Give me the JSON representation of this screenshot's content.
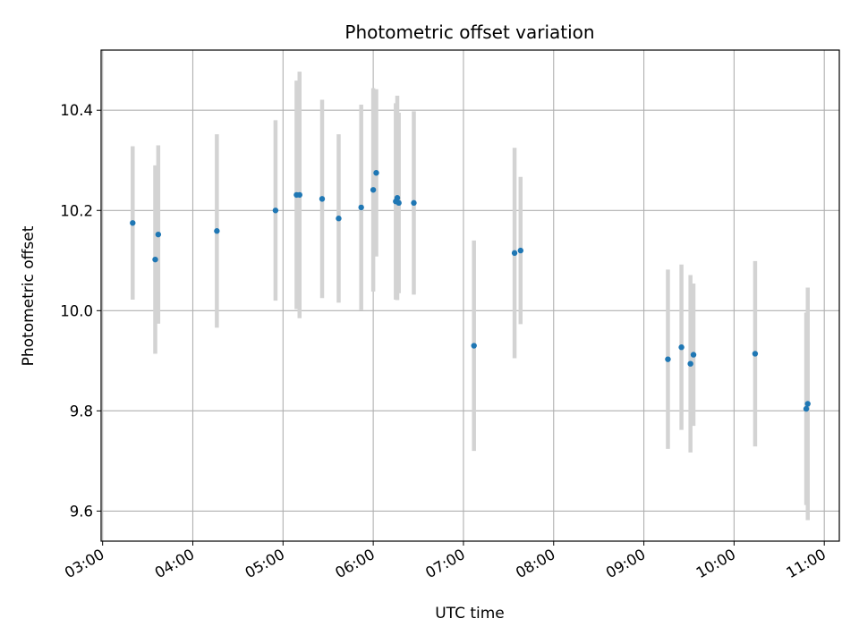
{
  "chart_data": {
    "type": "scatter",
    "title": "Photometric offset variation",
    "xlabel": "UTC time",
    "ylabel": "Photometric offset",
    "x_tick_labels": [
      "03:00",
      "04:00",
      "05:00",
      "06:00",
      "07:00",
      "08:00",
      "09:00",
      "10:00",
      "11:00"
    ],
    "y_tick_labels": [
      "9.6",
      "9.8",
      "10.0",
      "10.2",
      "10.4"
    ],
    "x_ticks_hours": [
      3,
      4,
      5,
      6,
      7,
      8,
      9,
      10,
      11
    ],
    "y_ticks": [
      9.6,
      9.8,
      10.0,
      10.2,
      10.4
    ],
    "xlim": [
      "02:59",
      "11:10"
    ],
    "ylim": [
      9.54,
      10.52
    ],
    "grid": true,
    "colors": {
      "points": "#1f77b4",
      "errorbars": "#d3d3d3",
      "grid": "#b0b0b0"
    },
    "points": [
      {
        "x": "03:20",
        "y": 10.175,
        "yerr": 0.153
      },
      {
        "x": "03:35",
        "y": 10.102,
        "yerr": 0.188
      },
      {
        "x": "03:37",
        "y": 10.152,
        "yerr": 0.178
      },
      {
        "x": "04:16",
        "y": 10.159,
        "yerr": 0.193
      },
      {
        "x": "04:55",
        "y": 10.2,
        "yerr": 0.18
      },
      {
        "x": "05:09",
        "y": 10.231,
        "yerr": 0.228
      },
      {
        "x": "05:11",
        "y": 10.231,
        "yerr": 0.246
      },
      {
        "x": "05:26",
        "y": 10.223,
        "yerr": 0.198
      },
      {
        "x": "05:37",
        "y": 10.184,
        "yerr": 0.168
      },
      {
        "x": "05:52",
        "y": 10.206,
        "yerr": 0.205
      },
      {
        "x": "06:00",
        "y": 10.241,
        "yerr": 0.203
      },
      {
        "x": "06:02",
        "y": 10.275,
        "yerr": 0.167
      },
      {
        "x": "06:15",
        "y": 10.218,
        "yerr": 0.196
      },
      {
        "x": "06:16",
        "y": 10.225,
        "yerr": 0.204
      },
      {
        "x": "06:17",
        "y": 10.215,
        "yerr": 0.18
      },
      {
        "x": "06:27",
        "y": 10.215,
        "yerr": 0.183
      },
      {
        "x": "07:07",
        "y": 9.93,
        "yerr": 0.21
      },
      {
        "x": "07:34",
        "y": 10.115,
        "yerr": 0.21
      },
      {
        "x": "07:38",
        "y": 10.12,
        "yerr": 0.147
      },
      {
        "x": "09:16",
        "y": 9.903,
        "yerr": 0.179
      },
      {
        "x": "09:25",
        "y": 9.927,
        "yerr": 0.165
      },
      {
        "x": "09:31",
        "y": 9.894,
        "yerr": 0.177
      },
      {
        "x": "09:33",
        "y": 9.912,
        "yerr": 0.142
      },
      {
        "x": "10:14",
        "y": 9.914,
        "yerr": 0.185
      },
      {
        "x": "10:48",
        "y": 9.804,
        "yerr": 0.192
      },
      {
        "x": "10:49",
        "y": 9.814,
        "yerr": 0.232
      }
    ]
  }
}
